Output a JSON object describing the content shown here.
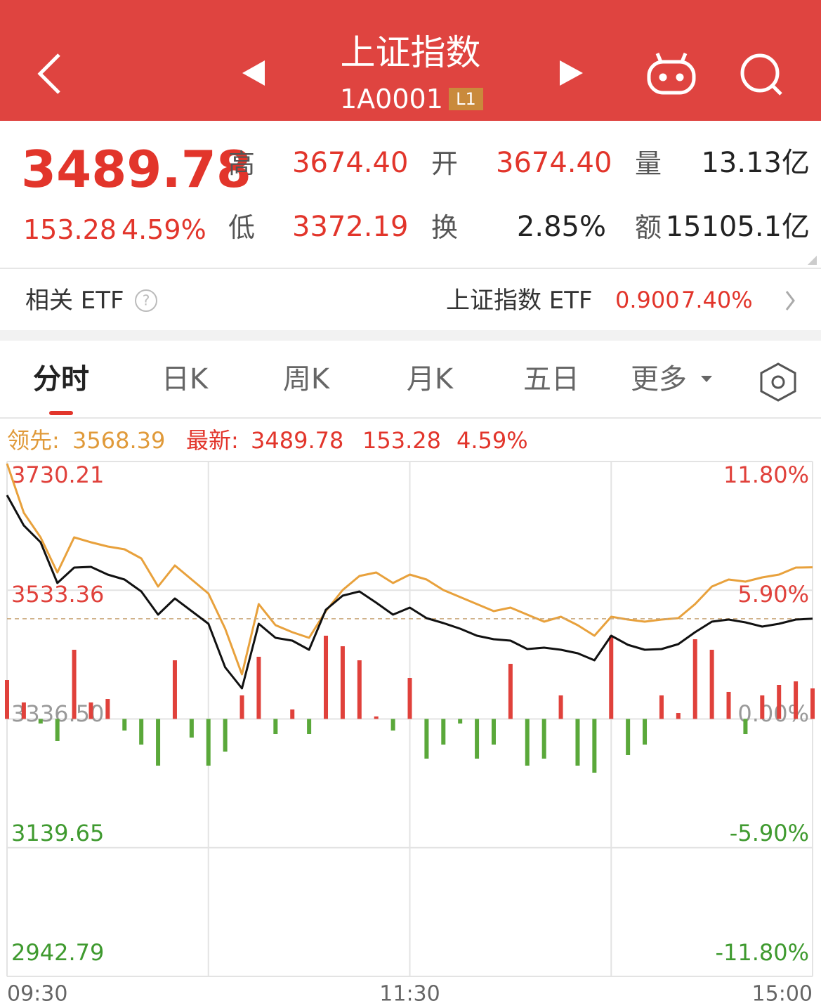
{
  "header": {
    "title": "上证指数",
    "code": "1A0001",
    "badge": "L1"
  },
  "quote": {
    "price": "3489.78",
    "change": "153.28",
    "change_pct": "4.59%",
    "high_label": "高",
    "high": "3674.40",
    "open_label": "开",
    "open": "3674.40",
    "volume_label": "量",
    "volume": "13.13亿",
    "low_label": "低",
    "low": "3372.19",
    "turnover_label": "换",
    "turnover": "2.85%",
    "amount_label": "额",
    "amount": "15105.1亿"
  },
  "etf": {
    "label": "相关 ETF",
    "name": "上证指数 ETF",
    "price": "0.900",
    "change_pct": "7.40%"
  },
  "tabs": [
    "分时",
    "日K",
    "周K",
    "月K",
    "五日",
    "更多"
  ],
  "legend": {
    "lead_label": "领先:",
    "lead": "3568.39",
    "latest_label": "最新:",
    "latest": "3489.78",
    "change": "153.28",
    "change_pct": "4.59%"
  },
  "chart_data": {
    "type": "line",
    "x": [
      0,
      5,
      10,
      15,
      20,
      25,
      30,
      35,
      40,
      45,
      50,
      55,
      60,
      65,
      70,
      75,
      80,
      85,
      90,
      95,
      100,
      105,
      110,
      115,
      120,
      125,
      130,
      135,
      140,
      145,
      150,
      155,
      160,
      165,
      170,
      175,
      180,
      185,
      190,
      195,
      200,
      205,
      210,
      215,
      220,
      225,
      230,
      235,
      240
    ],
    "xlim": [
      0,
      240
    ],
    "xticks": [
      {
        "value": 0,
        "label": "09:30"
      },
      {
        "value": 60,
        "label": null
      },
      {
        "value": 120,
        "label": "11:30"
      },
      {
        "value": 180,
        "label": null
      },
      {
        "value": 240,
        "label": "15:00"
      }
    ],
    "ylim": [
      2942.79,
      3730.21
    ],
    "yticks": [
      3730.21,
      3533.36,
      {
        "value": 3336.5,
        "label": "3336.50"
      },
      3139.65,
      2942.79
    ],
    "y2lim": [
      -11.8,
      11.8
    ],
    "y2ticks": [
      {
        "value": 11.8,
        "label": "11.80%"
      },
      {
        "value": 5.9,
        "label": "5.90%"
      },
      {
        "value": 0,
        "label": "0.00%"
      },
      {
        "value": -5.9,
        "label": "-5.90%"
      },
      {
        "value": -11.8,
        "label": "-11.80%"
      }
    ],
    "grid": true,
    "series": [
      {
        "type": "bar",
        "up_color": "#e0413b",
        "down_color": "#5aa83a",
        "values": [
          3396.1,
          3361.7,
          3329.5,
          3302.7,
          3442.3,
          3361.7,
          3367.1,
          3318.8,
          3297.3,
          3265.1,
          3426.2,
          3308.0,
          3265.1,
          3286.6,
          3372.5,
          3431.6,
          3313.4,
          3351.0,
          3313.4,
          3463.8,
          3447.7,
          3426.2,
          3340.3,
          3318.8,
          3399.3,
          3275.8,
          3297.3,
          3329.5,
          3275.8,
          3297.3,
          3420.8,
          3265.1,
          3275.8,
          3372.5,
          3265.1,
          3254.3,
          3463.8,
          3281.2,
          3297.3,
          3372.5,
          3345.6,
          3458.4,
          3442.3,
          3377.9,
          3313.4,
          3372.5,
          3388.6,
          3394.0,
          3383.2
        ]
      },
      {
        "type": "line",
        "color": "#e8a13c",
        "values": [
          3727.0,
          3651.8,
          3614.2,
          3560.5,
          3614.2,
          3606.7,
          3600.2,
          3595.9,
          3582.0,
          3539.0,
          3571.2,
          3549.7,
          3528.3,
          3474.5,
          3404.7,
          3512.1,
          3479.9,
          3469.2,
          3460.6,
          3501.4,
          3533.6,
          3555.1,
          3560.5,
          3544.4,
          3557.3,
          3549.7,
          3533.6,
          3522.9,
          3512.1,
          3501.4,
          3506.8,
          3496.0,
          3485.3,
          3492.8,
          3479.9,
          3463.8,
          3492.8,
          3488.5,
          3485.3,
          3488.5,
          3490.7,
          3512.1,
          3539.0,
          3549.7,
          3546.5,
          3553.0,
          3557.3,
          3568.0,
          3568.39
        ]
      },
      {
        "type": "line",
        "color": "#111111",
        "values": [
          3678.6,
          3632.4,
          3606.7,
          3544.4,
          3568.0,
          3569.1,
          3557.3,
          3549.7,
          3531.5,
          3496.0,
          3520.7,
          3501.4,
          3482.1,
          3415.5,
          3383.2,
          3482.1,
          3460.6,
          3456.3,
          3442.3,
          3503.5,
          3525.0,
          3531.5,
          3514.3,
          3496.0,
          3506.8,
          3490.7,
          3483.1,
          3474.5,
          3463.8,
          3458.4,
          3456.3,
          3443.4,
          3445.5,
          3442.3,
          3436.9,
          3426.2,
          3463.8,
          3449.8,
          3442.3,
          3443.4,
          3450.9,
          3469.2,
          3485.3,
          3488.5,
          3484.2,
          3477.8,
          3482.1,
          3488.5,
          3489.78
        ]
      }
    ]
  }
}
